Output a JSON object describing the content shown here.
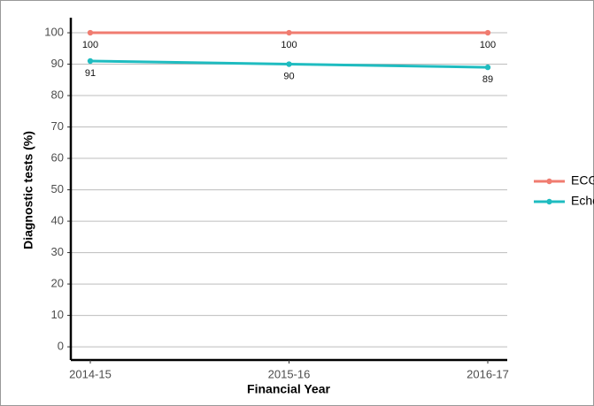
{
  "chart_data": {
    "type": "line",
    "x_label": "Financial Year",
    "y_label": "Diagnostic tests (%)",
    "categories": [
      "2014-15",
      "2015-16",
      "2016-17"
    ],
    "series": [
      {
        "name": "ECG",
        "color": "#f07c70",
        "values": [
          100,
          100,
          100
        ]
      },
      {
        "name": "Echo",
        "color": "#1fbcc0",
        "values": [
          91,
          90,
          89
        ]
      }
    ],
    "ylim": [
      -4.2,
      104.8
    ],
    "yticks": [
      0,
      10,
      20,
      30,
      40,
      50,
      60,
      70,
      80,
      90,
      100
    ],
    "grid": true,
    "legend": "right"
  }
}
